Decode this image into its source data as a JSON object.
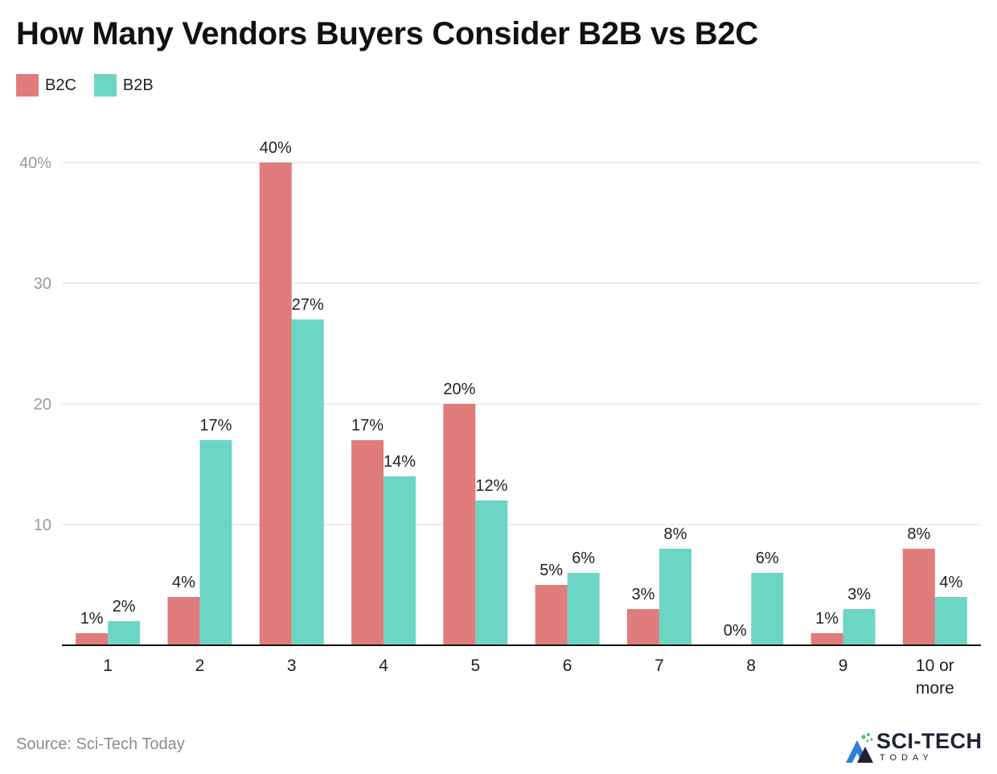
{
  "chart_data": {
    "type": "bar",
    "title": "How Many Vendors Buyers Consider B2B vs B2C",
    "categories": [
      "1",
      "2",
      "3",
      "4",
      "5",
      "6",
      "7",
      "8",
      "9",
      "10 or more"
    ],
    "series": [
      {
        "name": "B2C",
        "color": "#e07c7c",
        "values": [
          1,
          4,
          40,
          17,
          20,
          5,
          3,
          0,
          1,
          8
        ]
      },
      {
        "name": "B2B",
        "color": "#6dd5c4",
        "values": [
          2,
          17,
          27,
          14,
          12,
          6,
          8,
          6,
          3,
          4
        ]
      }
    ],
    "data_labels": {
      "B2C": [
        "1%",
        "4%",
        "40%",
        "17%",
        "20%",
        "5%",
        "3%",
        "0%",
        "1%",
        "8%"
      ],
      "B2B": [
        "2%",
        "17%",
        "27%",
        "14%",
        "12%",
        "6%",
        "8%",
        "6%",
        "3%",
        "4%"
      ]
    },
    "yaxis": {
      "ticks": [
        10,
        20,
        30,
        40
      ],
      "tick_labels": [
        "10",
        "20",
        "30",
        "40%"
      ]
    },
    "ylim": [
      0,
      40
    ],
    "grid": true,
    "legend": "top-left"
  },
  "source": "Source: Sci-Tech Today",
  "logo": {
    "main": "SCI-TECH",
    "sub": "TODAY"
  }
}
